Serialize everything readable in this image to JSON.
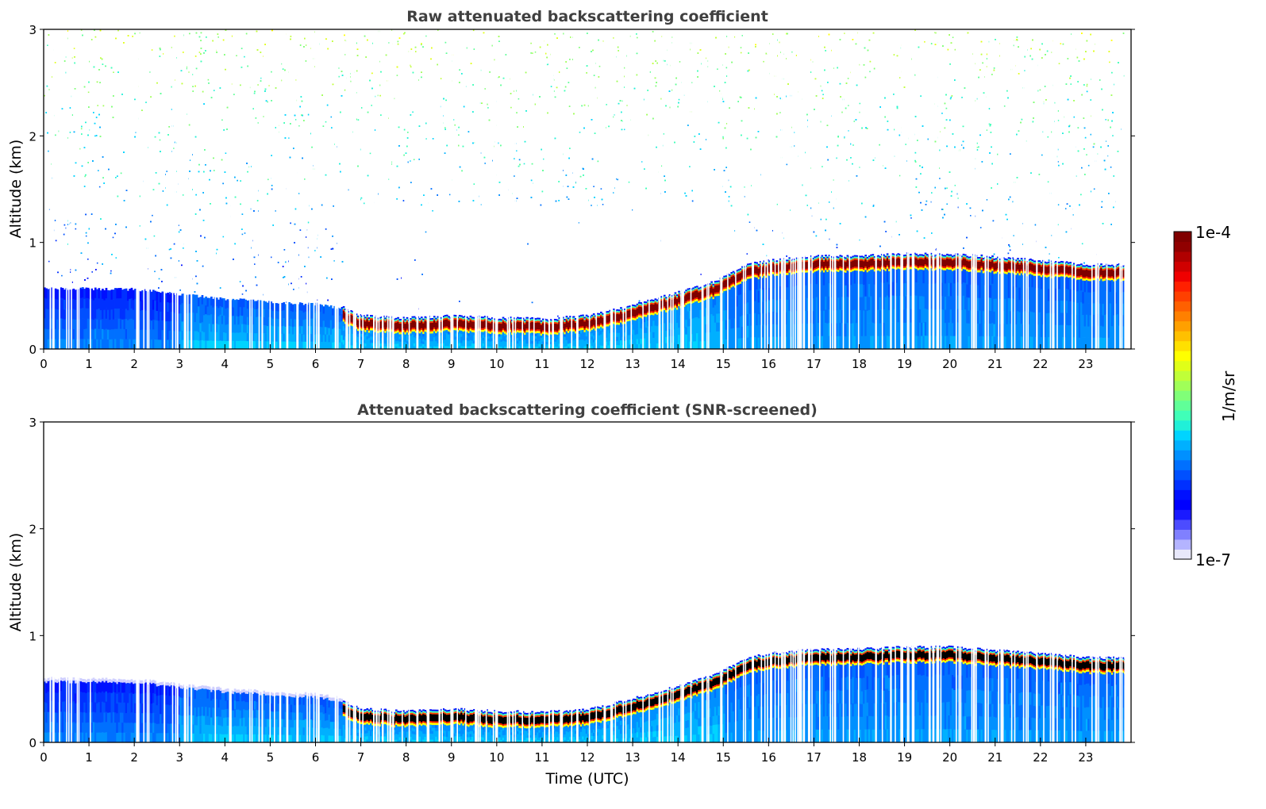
{
  "chart_data": [
    {
      "type": "heatmap",
      "title": "Raw attenuated backscattering coefficient",
      "xlabel": "",
      "ylabel": "Altitude (km)",
      "xlim": [
        0,
        24
      ],
      "ylim": [
        0,
        3
      ],
      "x_ticks": [
        "0",
        "1",
        "2",
        "3",
        "4",
        "5",
        "6",
        "7",
        "8",
        "9",
        "10",
        "11",
        "12",
        "13",
        "14",
        "15",
        "16",
        "17",
        "18",
        "19",
        "20",
        "21",
        "22",
        "23"
      ],
      "y_ticks": [
        "0",
        "1",
        "2",
        "3"
      ],
      "noise": true,
      "layer_top_km": [
        [
          0,
          0.57
        ],
        [
          2,
          0.56
        ],
        [
          4,
          0.47
        ],
        [
          6,
          0.42
        ],
        [
          6.6,
          0.38
        ],
        [
          7,
          0.3
        ],
        [
          8,
          0.28
        ],
        [
          9,
          0.3
        ],
        [
          10,
          0.28
        ],
        [
          11,
          0.27
        ],
        [
          12,
          0.3
        ],
        [
          13,
          0.4
        ],
        [
          14,
          0.52
        ],
        [
          14.8,
          0.62
        ],
        [
          15.5,
          0.78
        ],
        [
          16,
          0.82
        ],
        [
          17,
          0.86
        ],
        [
          18,
          0.86
        ],
        [
          19,
          0.88
        ],
        [
          20,
          0.88
        ],
        [
          21,
          0.85
        ],
        [
          22,
          0.82
        ],
        [
          23,
          0.78
        ],
        [
          23.85,
          0.78
        ]
      ],
      "cloud_start_hour": 6.6
    },
    {
      "type": "heatmap",
      "title": "Attenuated backscattering coefficient (SNR-screened)",
      "xlabel": "Time (UTC)",
      "ylabel": "Altitude (km)",
      "xlim": [
        0,
        24
      ],
      "ylim": [
        0,
        3
      ],
      "x_ticks": [
        "0",
        "1",
        "2",
        "3",
        "4",
        "5",
        "6",
        "7",
        "8",
        "9",
        "10",
        "11",
        "12",
        "13",
        "14",
        "15",
        "16",
        "17",
        "18",
        "19",
        "20",
        "21",
        "22",
        "23"
      ],
      "y_ticks": [
        "0",
        "1",
        "2",
        "3"
      ],
      "noise": false,
      "layer_top_km": [
        [
          0,
          0.57
        ],
        [
          2,
          0.56
        ],
        [
          4,
          0.47
        ],
        [
          6,
          0.42
        ],
        [
          6.6,
          0.38
        ],
        [
          7,
          0.3
        ],
        [
          8,
          0.28
        ],
        [
          9,
          0.3
        ],
        [
          10,
          0.28
        ],
        [
          11,
          0.27
        ],
        [
          12,
          0.3
        ],
        [
          13,
          0.4
        ],
        [
          14,
          0.52
        ],
        [
          14.8,
          0.62
        ],
        [
          15.5,
          0.78
        ],
        [
          16,
          0.82
        ],
        [
          17,
          0.86
        ],
        [
          18,
          0.86
        ],
        [
          19,
          0.88
        ],
        [
          20,
          0.88
        ],
        [
          21,
          0.85
        ],
        [
          22,
          0.82
        ],
        [
          23,
          0.78
        ],
        [
          23.85,
          0.78
        ]
      ],
      "cloud_start_hour": 6.6
    }
  ],
  "colorbar": {
    "label": "1/m/sr",
    "max_label": "1e-4",
    "min_label": "1e-7",
    "scale": "log",
    "range": [
      1e-07,
      0.0001
    ],
    "colors": [
      "#e8e8fa",
      "#b4b4ff",
      "#8080ff",
      "#4c4cff",
      "#1a1aff",
      "#0000ff",
      "#0010ff",
      "#0030ff",
      "#0050ff",
      "#0070ff",
      "#0090ff",
      "#00b0ff",
      "#00d4ff",
      "#20f0d8",
      "#40ffb8",
      "#60ff98",
      "#80ff78",
      "#a0ff58",
      "#c0ff38",
      "#e0ff18",
      "#ffff00",
      "#ffe000",
      "#ffc000",
      "#ffa000",
      "#ff8000",
      "#ff6000",
      "#ff4000",
      "#ff2000",
      "#f00000",
      "#d00000",
      "#b00000",
      "#900000",
      "#800000"
    ]
  }
}
